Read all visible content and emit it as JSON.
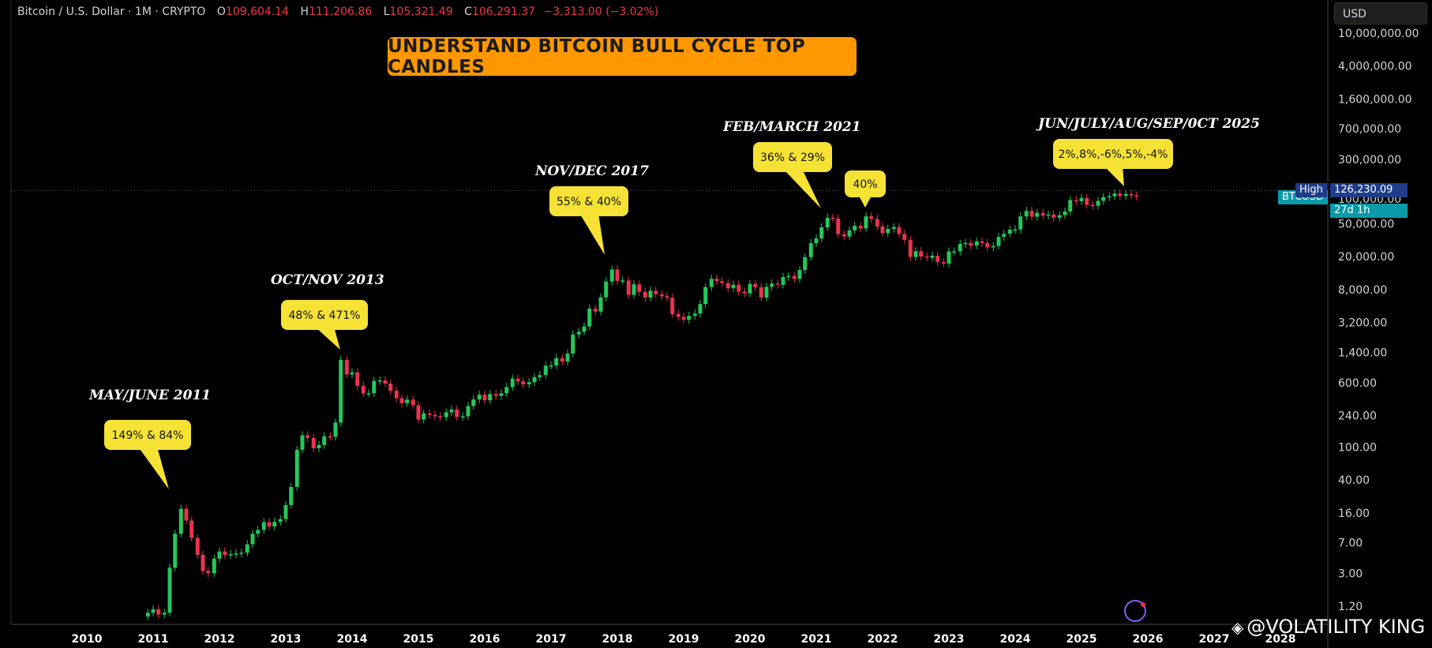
{
  "header": {
    "symbol": "Bitcoin / U.S. Dollar · 1M · CRYPTO",
    "open_label": "O",
    "open": "109,604.14",
    "high_label": "H",
    "high": "111,206.86",
    "low_label": "L",
    "low": "105,321.49",
    "close_label": "C",
    "close": "106,291.37",
    "change": "−3,313.00 (−3.02%)"
  },
  "currency_button": "USD",
  "banner_title": "UNDERSTAND BITCOIN BULL CYCLE TOP CANDLES",
  "price_tags": {
    "high_label": "High",
    "high_value": "126,230.09",
    "btc_label": "BTCUSD",
    "countdown": "27d 1h"
  },
  "watermark": "@VOLATILITY KING",
  "colors": {
    "up": "#26c75a",
    "down": "#e8344e",
    "callout": "#f5e234",
    "banner": "#ff9800",
    "axis_text": "#d1d4dc",
    "high_tag": "#1f3d8a",
    "btc_tag": "#0a9aa8"
  },
  "chart_data": {
    "type": "candlestick",
    "title": "UNDERSTAND BITCOIN BULL CYCLE TOP CANDLES",
    "interval": "1M",
    "y_scale": "log",
    "ylim": [
      0.9,
      12000000
    ],
    "xlim": [
      2009.0,
      2028.0
    ],
    "y_ticks": [
      "10,000,000.00",
      "4,000,000.00",
      "1,600,000.00",
      "700,000.00",
      "300,000.00",
      "100,000.00",
      "50,000.00",
      "20,000.00",
      "8,000.00",
      "3,200.00",
      "1,400.00",
      "600.00",
      "240.00",
      "100.00",
      "40.00",
      "16.00",
      "7.00",
      "3.00",
      "1.20"
    ],
    "y_tick_values": [
      10000000,
      4000000,
      1600000,
      700000,
      300000,
      100000,
      50000,
      20000,
      8000,
      3200,
      1400,
      600,
      240,
      100,
      40,
      16,
      7,
      3,
      1.2
    ],
    "x_ticks": [
      "2010",
      "2011",
      "2012",
      "2013",
      "2014",
      "2015",
      "2016",
      "2017",
      "2018",
      "2019",
      "2020",
      "2021",
      "2022",
      "2023",
      "2024",
      "2025",
      "2026",
      "2027",
      "2028"
    ],
    "x_tick_values": [
      2010,
      2011,
      2012,
      2013,
      2014,
      2015,
      2016,
      2017,
      2018,
      2019,
      2020,
      2021,
      2022,
      2023,
      2024,
      2025,
      2026,
      2027,
      2028
    ],
    "high_line": 126230.09,
    "series": [
      {
        "t": 2010.92,
        "o": 0.9,
        "c": 1.0
      },
      {
        "t": 2011.0,
        "o": 1.0,
        "c": 1.1
      },
      {
        "t": 2011.08,
        "o": 1.1,
        "c": 0.95
      },
      {
        "t": 2011.17,
        "o": 0.95,
        "c": 1.0
      },
      {
        "t": 2011.25,
        "o": 1.0,
        "c": 3.5
      },
      {
        "t": 2011.33,
        "o": 3.5,
        "c": 9
      },
      {
        "t": 2011.42,
        "o": 9,
        "c": 18
      },
      {
        "t": 2011.5,
        "o": 18,
        "c": 13
      },
      {
        "t": 2011.58,
        "o": 13,
        "c": 8
      },
      {
        "t": 2011.67,
        "o": 8,
        "c": 5
      },
      {
        "t": 2011.75,
        "o": 5,
        "c": 3.2
      },
      {
        "t": 2011.83,
        "o": 3.2,
        "c": 3
      },
      {
        "t": 2011.92,
        "o": 3,
        "c": 4.5
      },
      {
        "t": 2012.0,
        "o": 4.5,
        "c": 5.5
      },
      {
        "t": 2012.08,
        "o": 5.5,
        "c": 5
      },
      {
        "t": 2012.17,
        "o": 5,
        "c": 5.1
      },
      {
        "t": 2012.25,
        "o": 5.1,
        "c": 5.2
      },
      {
        "t": 2012.33,
        "o": 5.2,
        "c": 5.3
      },
      {
        "t": 2012.42,
        "o": 5.3,
        "c": 6.7
      },
      {
        "t": 2012.5,
        "o": 6.7,
        "c": 9
      },
      {
        "t": 2012.58,
        "o": 9,
        "c": 10
      },
      {
        "t": 2012.67,
        "o": 10,
        "c": 12.4
      },
      {
        "t": 2012.75,
        "o": 12.4,
        "c": 11
      },
      {
        "t": 2012.83,
        "o": 11,
        "c": 12.5
      },
      {
        "t": 2012.92,
        "o": 12.5,
        "c": 13.5
      },
      {
        "t": 2013.0,
        "o": 13.5,
        "c": 20
      },
      {
        "t": 2013.08,
        "o": 20,
        "c": 33
      },
      {
        "t": 2013.17,
        "o": 33,
        "c": 93
      },
      {
        "t": 2013.25,
        "o": 93,
        "c": 139
      },
      {
        "t": 2013.33,
        "o": 139,
        "c": 129
      },
      {
        "t": 2013.42,
        "o": 129,
        "c": 97
      },
      {
        "t": 2013.5,
        "o": 97,
        "c": 106
      },
      {
        "t": 2013.58,
        "o": 106,
        "c": 135
      },
      {
        "t": 2013.67,
        "o": 135,
        "c": 133
      },
      {
        "t": 2013.75,
        "o": 133,
        "c": 198
      },
      {
        "t": 2013.83,
        "o": 198,
        "c": 1130
      },
      {
        "t": 2013.92,
        "o": 1130,
        "c": 757
      },
      {
        "t": 2014.0,
        "o": 757,
        "c": 800
      },
      {
        "t": 2014.08,
        "o": 800,
        "c": 550
      },
      {
        "t": 2014.17,
        "o": 550,
        "c": 445
      },
      {
        "t": 2014.25,
        "o": 445,
        "c": 448
      },
      {
        "t": 2014.33,
        "o": 448,
        "c": 630
      },
      {
        "t": 2014.42,
        "o": 630,
        "c": 640
      },
      {
        "t": 2014.5,
        "o": 640,
        "c": 585
      },
      {
        "t": 2014.58,
        "o": 585,
        "c": 480
      },
      {
        "t": 2014.67,
        "o": 480,
        "c": 390
      },
      {
        "t": 2014.75,
        "o": 390,
        "c": 340
      },
      {
        "t": 2014.83,
        "o": 340,
        "c": 375
      },
      {
        "t": 2014.92,
        "o": 375,
        "c": 320
      },
      {
        "t": 2015.0,
        "o": 320,
        "c": 215
      },
      {
        "t": 2015.08,
        "o": 215,
        "c": 255
      },
      {
        "t": 2015.17,
        "o": 255,
        "c": 245
      },
      {
        "t": 2015.25,
        "o": 245,
        "c": 236
      },
      {
        "t": 2015.33,
        "o": 236,
        "c": 230
      },
      {
        "t": 2015.42,
        "o": 230,
        "c": 263
      },
      {
        "t": 2015.5,
        "o": 263,
        "c": 285
      },
      {
        "t": 2015.58,
        "o": 285,
        "c": 231
      },
      {
        "t": 2015.67,
        "o": 231,
        "c": 236
      },
      {
        "t": 2015.75,
        "o": 236,
        "c": 314
      },
      {
        "t": 2015.83,
        "o": 314,
        "c": 377
      },
      {
        "t": 2015.92,
        "o": 377,
        "c": 430
      },
      {
        "t": 2016.0,
        "o": 430,
        "c": 368
      },
      {
        "t": 2016.08,
        "o": 368,
        "c": 437
      },
      {
        "t": 2016.17,
        "o": 437,
        "c": 416
      },
      {
        "t": 2016.25,
        "o": 416,
        "c": 448
      },
      {
        "t": 2016.33,
        "o": 448,
        "c": 531
      },
      {
        "t": 2016.42,
        "o": 531,
        "c": 673
      },
      {
        "t": 2016.5,
        "o": 673,
        "c": 624
      },
      {
        "t": 2016.58,
        "o": 624,
        "c": 573
      },
      {
        "t": 2016.67,
        "o": 573,
        "c": 609
      },
      {
        "t": 2016.75,
        "o": 609,
        "c": 700
      },
      {
        "t": 2016.83,
        "o": 700,
        "c": 742
      },
      {
        "t": 2016.92,
        "o": 742,
        "c": 963
      },
      {
        "t": 2017.0,
        "o": 963,
        "c": 970
      },
      {
        "t": 2017.08,
        "o": 970,
        "c": 1190
      },
      {
        "t": 2017.17,
        "o": 1190,
        "c": 1080
      },
      {
        "t": 2017.25,
        "o": 1080,
        "c": 1350
      },
      {
        "t": 2017.33,
        "o": 1350,
        "c": 2300
      },
      {
        "t": 2017.42,
        "o": 2300,
        "c": 2480
      },
      {
        "t": 2017.5,
        "o": 2480,
        "c": 2870
      },
      {
        "t": 2017.58,
        "o": 2870,
        "c": 4700
      },
      {
        "t": 2017.67,
        "o": 4700,
        "c": 4340
      },
      {
        "t": 2017.75,
        "o": 4340,
        "c": 6450
      },
      {
        "t": 2017.83,
        "o": 6450,
        "c": 10000
      },
      {
        "t": 2017.92,
        "o": 10000,
        "c": 14000
      },
      {
        "t": 2018.0,
        "o": 14000,
        "c": 10200
      },
      {
        "t": 2018.08,
        "o": 10200,
        "c": 10300
      },
      {
        "t": 2018.17,
        "o": 10300,
        "c": 6900
      },
      {
        "t": 2018.25,
        "o": 6900,
        "c": 9250
      },
      {
        "t": 2018.33,
        "o": 9250,
        "c": 7500
      },
      {
        "t": 2018.42,
        "o": 7500,
        "c": 6400
      },
      {
        "t": 2018.5,
        "o": 6400,
        "c": 7730
      },
      {
        "t": 2018.58,
        "o": 7730,
        "c": 7000
      },
      {
        "t": 2018.67,
        "o": 7000,
        "c": 6630
      },
      {
        "t": 2018.75,
        "o": 6630,
        "c": 6370
      },
      {
        "t": 2018.83,
        "o": 6370,
        "c": 4040
      },
      {
        "t": 2018.92,
        "o": 4040,
        "c": 3740
      },
      {
        "t": 2019.0,
        "o": 3740,
        "c": 3460
      },
      {
        "t": 2019.08,
        "o": 3460,
        "c": 3850
      },
      {
        "t": 2019.17,
        "o": 3850,
        "c": 4100
      },
      {
        "t": 2019.25,
        "o": 4100,
        "c": 5350
      },
      {
        "t": 2019.33,
        "o": 5350,
        "c": 8570
      },
      {
        "t": 2019.42,
        "o": 8570,
        "c": 10800
      },
      {
        "t": 2019.5,
        "o": 10800,
        "c": 10100
      },
      {
        "t": 2019.58,
        "o": 10100,
        "c": 9600
      },
      {
        "t": 2019.67,
        "o": 9600,
        "c": 8300
      },
      {
        "t": 2019.75,
        "o": 8300,
        "c": 9150
      },
      {
        "t": 2019.83,
        "o": 9150,
        "c": 7550
      },
      {
        "t": 2019.92,
        "o": 7550,
        "c": 7200
      },
      {
        "t": 2020.0,
        "o": 7200,
        "c": 9350
      },
      {
        "t": 2020.08,
        "o": 9350,
        "c": 8550
      },
      {
        "t": 2020.17,
        "o": 8550,
        "c": 6400
      },
      {
        "t": 2020.25,
        "o": 6400,
        "c": 8630
      },
      {
        "t": 2020.33,
        "o": 8630,
        "c": 9450
      },
      {
        "t": 2020.42,
        "o": 9450,
        "c": 9140
      },
      {
        "t": 2020.5,
        "o": 9140,
        "c": 11350
      },
      {
        "t": 2020.58,
        "o": 11350,
        "c": 11650
      },
      {
        "t": 2020.67,
        "o": 11650,
        "c": 10780
      },
      {
        "t": 2020.75,
        "o": 10780,
        "c": 13800
      },
      {
        "t": 2020.83,
        "o": 13800,
        "c": 19700
      },
      {
        "t": 2020.92,
        "o": 19700,
        "c": 29000
      },
      {
        "t": 2021.0,
        "o": 29000,
        "c": 33100
      },
      {
        "t": 2021.08,
        "o": 33100,
        "c": 45200
      },
      {
        "t": 2021.17,
        "o": 45200,
        "c": 58800
      },
      {
        "t": 2021.25,
        "o": 58800,
        "c": 57700
      },
      {
        "t": 2021.33,
        "o": 57700,
        "c": 37300
      },
      {
        "t": 2021.42,
        "o": 37300,
        "c": 35000
      },
      {
        "t": 2021.5,
        "o": 35000,
        "c": 41500
      },
      {
        "t": 2021.58,
        "o": 41500,
        "c": 47100
      },
      {
        "t": 2021.67,
        "o": 47100,
        "c": 43800
      },
      {
        "t": 2021.75,
        "o": 43800,
        "c": 61300
      },
      {
        "t": 2021.83,
        "o": 61300,
        "c": 57000
      },
      {
        "t": 2021.92,
        "o": 57000,
        "c": 46200
      },
      {
        "t": 2022.0,
        "o": 46200,
        "c": 38500
      },
      {
        "t": 2022.08,
        "o": 38500,
        "c": 43200
      },
      {
        "t": 2022.17,
        "o": 43200,
        "c": 45500
      },
      {
        "t": 2022.25,
        "o": 45500,
        "c": 37600
      },
      {
        "t": 2022.33,
        "o": 37600,
        "c": 31800
      },
      {
        "t": 2022.42,
        "o": 31800,
        "c": 19800
      },
      {
        "t": 2022.5,
        "o": 19800,
        "c": 23300
      },
      {
        "t": 2022.58,
        "o": 23300,
        "c": 20050
      },
      {
        "t": 2022.67,
        "o": 20050,
        "c": 19400
      },
      {
        "t": 2022.75,
        "o": 19400,
        "c": 20500
      },
      {
        "t": 2022.83,
        "o": 20500,
        "c": 17200
      },
      {
        "t": 2022.92,
        "o": 17200,
        "c": 16500
      },
      {
        "t": 2023.0,
        "o": 16500,
        "c": 23100
      },
      {
        "t": 2023.08,
        "o": 23100,
        "c": 23100
      },
      {
        "t": 2023.17,
        "o": 23100,
        "c": 28500
      },
      {
        "t": 2023.25,
        "o": 28500,
        "c": 29200
      },
      {
        "t": 2023.33,
        "o": 29200,
        "c": 27200
      },
      {
        "t": 2023.42,
        "o": 27200,
        "c": 30500
      },
      {
        "t": 2023.5,
        "o": 30500,
        "c": 29200
      },
      {
        "t": 2023.58,
        "o": 29200,
        "c": 25900
      },
      {
        "t": 2023.67,
        "o": 25900,
        "c": 26900
      },
      {
        "t": 2023.75,
        "o": 26900,
        "c": 34600
      },
      {
        "t": 2023.83,
        "o": 34600,
        "c": 37700
      },
      {
        "t": 2023.92,
        "o": 37700,
        "c": 42300
      },
      {
        "t": 2024.0,
        "o": 42300,
        "c": 42600
      },
      {
        "t": 2024.08,
        "o": 42600,
        "c": 61200
      },
      {
        "t": 2024.17,
        "o": 61200,
        "c": 71300
      },
      {
        "t": 2024.25,
        "o": 71300,
        "c": 60700
      },
      {
        "t": 2024.33,
        "o": 60700,
        "c": 67500
      },
      {
        "t": 2024.42,
        "o": 67500,
        "c": 62700
      },
      {
        "t": 2024.5,
        "o": 62700,
        "c": 64600
      },
      {
        "t": 2024.58,
        "o": 64600,
        "c": 58900
      },
      {
        "t": 2024.67,
        "o": 58900,
        "c": 63300
      },
      {
        "t": 2024.75,
        "o": 63300,
        "c": 70200
      },
      {
        "t": 2024.83,
        "o": 70200,
        "c": 96400
      },
      {
        "t": 2024.92,
        "o": 96400,
        "c": 93400
      },
      {
        "t": 2025.0,
        "o": 93400,
        "c": 102400
      },
      {
        "t": 2025.08,
        "o": 102400,
        "c": 84300
      },
      {
        "t": 2025.17,
        "o": 84300,
        "c": 82500
      },
      {
        "t": 2025.25,
        "o": 82500,
        "c": 94200
      },
      {
        "t": 2025.33,
        "o": 94200,
        "c": 104600
      },
      {
        "t": 2025.42,
        "o": 104600,
        "c": 107100
      },
      {
        "t": 2025.5,
        "o": 107100,
        "c": 115700
      },
      {
        "t": 2025.58,
        "o": 115700,
        "c": 108200
      },
      {
        "t": 2025.67,
        "o": 108200,
        "c": 114000
      },
      {
        "t": 2025.75,
        "o": 114000,
        "c": 109600
      },
      {
        "t": 2025.83,
        "o": 109600,
        "c": 106291.37
      }
    ],
    "annotations": [
      {
        "heading": "MAY/JUNE 2011",
        "text": "149% & 84%",
        "t": 2011.42,
        "price": 30
      },
      {
        "heading": "OCT/NOV 2013",
        "text": "48% & 471%",
        "t": 2013.83,
        "price": 1200
      },
      {
        "heading": "NOV/DEC 2017",
        "text": "55% & 40%",
        "t": 2017.92,
        "price": 19000
      },
      {
        "heading": "FEB/MARCH 2021",
        "text": "36% & 29%",
        "t": 2021.17,
        "price": 64000
      },
      {
        "heading": "",
        "text": "40%",
        "t": 2021.83,
        "price": 69000
      },
      {
        "heading": "JUN/JULY/AUG/SEP/0CT 2025",
        "text": "2%,8%,-6%,5%,-4%",
        "t": 2025.67,
        "price": 126000
      }
    ]
  }
}
